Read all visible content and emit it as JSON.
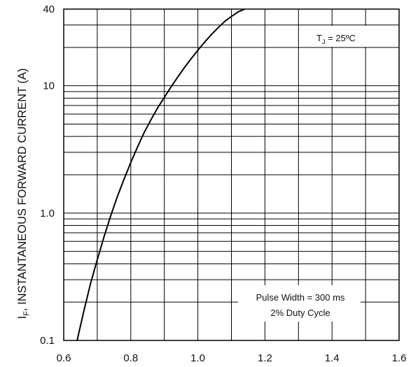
{
  "chart_data": {
    "type": "line",
    "title": "",
    "xlabel": "",
    "ylabel": "INSTANTANEOUS FORWARD CURRENT (A)",
    "ylabel_prefix": "I",
    "ylabel_sub": "F",
    "ylabel_sep": ", ",
    "xlim": [
      0.6,
      1.6
    ],
    "ylim": [
      0.1,
      40
    ],
    "yscale": "log",
    "grid": true,
    "x_ticks": [
      0.6,
      0.8,
      1.0,
      1.2,
      1.4,
      1.6
    ],
    "x_tick_labels": [
      "0.6",
      "0.8",
      "1.0",
      "1.2",
      "1.4",
      "1.6"
    ],
    "y_ticks": [
      0.1,
      1.0,
      10,
      40
    ],
    "y_tick_labels": [
      "0.1",
      "1.0",
      "10",
      "40"
    ],
    "series": [
      {
        "x": [
          0.64,
          0.66,
          0.68,
          0.7,
          0.72,
          0.74,
          0.76,
          0.78,
          0.8,
          0.82,
          0.84,
          0.86,
          0.88,
          0.9,
          0.92,
          0.94,
          0.96,
          0.98,
          1.0,
          1.02,
          1.04,
          1.06,
          1.08,
          1.1,
          1.12,
          1.14
        ],
        "y": [
          0.1,
          0.17,
          0.28,
          0.43,
          0.65,
          0.95,
          1.35,
          1.85,
          2.5,
          3.3,
          4.3,
          5.4,
          6.7,
          8.1,
          9.8,
          11.7,
          13.9,
          16.3,
          19.0,
          22.0,
          25.2,
          28.5,
          32.0,
          35.0,
          38.0,
          40.0
        ]
      }
    ],
    "annotations": {
      "tj_prefix": "T",
      "tj_sub": "J",
      "tj_value": " = 25ºC",
      "pulse_line1": "Pulse Width = 300 ms",
      "pulse_line2": "2% Duty Cycle"
    }
  }
}
